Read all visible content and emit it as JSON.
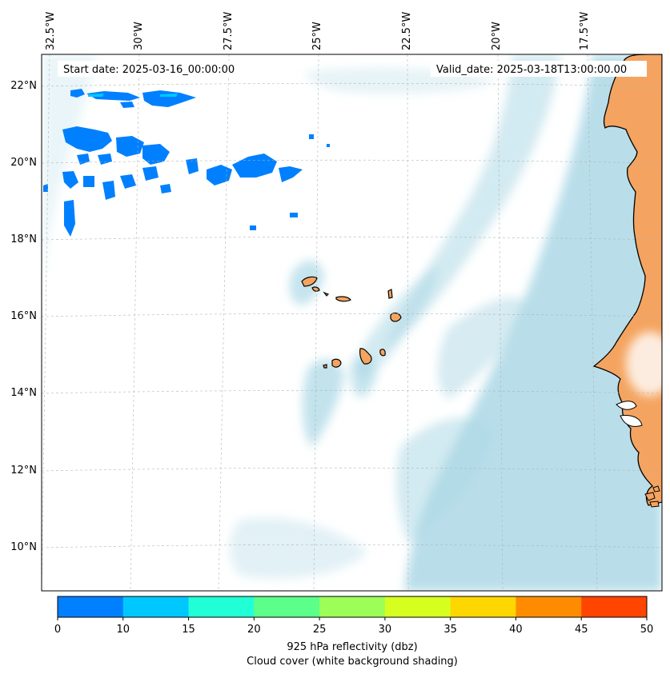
{
  "map": {
    "start_date_text": "Start date: 2025-03-16_00:00:00",
    "valid_date_text": "Valid_date: 2025-03-18T13:00:00.00",
    "lon_ticks": [
      "32.5°W",
      "30°W",
      "27.5°W",
      "25°W",
      "22.5°W",
      "20°W",
      "17.5°W"
    ],
    "lat_ticks": [
      "22°N",
      "20°N",
      "18°N",
      "16°N",
      "14°N",
      "12°N",
      "10°N"
    ],
    "land_color": "#f4a460",
    "cloud_color": "#add8e6",
    "ocean_color": "#ffffff"
  },
  "colorbar": {
    "ticks": [
      "0",
      "10",
      "15",
      "20",
      "25",
      "30",
      "35",
      "40",
      "45",
      "50"
    ],
    "colors": [
      "#0080ff",
      "#00c8ff",
      "#20ffd6",
      "#5cff8a",
      "#9cff58",
      "#d6ff20",
      "#ffd700",
      "#ff8c00",
      "#ff4500"
    ],
    "label_line1": "925 hPa reflectivity (dbz)",
    "label_line2": "Cloud cover (white background shading)"
  }
}
